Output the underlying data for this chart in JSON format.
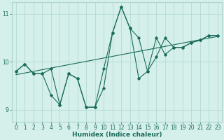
{
  "xlabel": "Humidex (Indice chaleur)",
  "x": [
    0,
    1,
    2,
    3,
    4,
    5,
    6,
    7,
    8,
    9,
    10,
    11,
    12,
    13,
    14,
    15,
    16,
    17,
    18,
    19,
    20,
    21,
    22,
    23
  ],
  "series1": [
    9.8,
    9.95,
    9.75,
    9.75,
    9.85,
    9.1,
    9.75,
    9.65,
    9.05,
    9.05,
    9.45,
    10.6,
    11.15,
    10.7,
    9.65,
    9.8,
    10.5,
    10.15,
    10.3,
    10.3,
    10.4,
    10.45,
    10.55,
    10.55
  ],
  "series2": [
    9.8,
    9.95,
    9.75,
    9.75,
    9.3,
    9.1,
    9.75,
    9.65,
    9.05,
    9.05,
    9.85,
    10.6,
    11.15,
    10.7,
    10.5,
    9.8,
    10.1,
    10.5,
    10.3,
    10.3,
    10.4,
    10.45,
    10.55,
    10.55
  ],
  "trend_x": [
    0,
    23
  ],
  "trend_y": [
    9.73,
    10.53
  ],
  "line_color": "#1a6b5a",
  "bg_color": "#d5efeb",
  "grid_color": "#aed6ce",
  "ylim": [
    8.75,
    11.25
  ],
  "xlim": [
    -0.5,
    23.5
  ],
  "yticks": [
    9,
    10,
    11
  ],
  "xticks": [
    0,
    1,
    2,
    3,
    4,
    5,
    6,
    7,
    8,
    9,
    10,
    11,
    12,
    13,
    14,
    15,
    16,
    17,
    18,
    19,
    20,
    21,
    22,
    23
  ],
  "tick_fontsize": 5.5,
  "label_fontsize": 6.5
}
